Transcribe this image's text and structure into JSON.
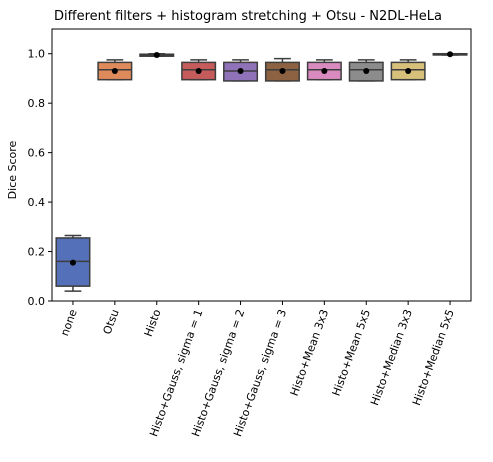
{
  "chart_data": {
    "type": "box",
    "title": "Different filters + histogram stretching + Otsu - N2DL-HeLa",
    "xlabel": "",
    "ylabel": "Dice Score",
    "ylim": [
      0.0,
      1.1
    ],
    "yticks": [
      0.0,
      0.2,
      0.4,
      0.6,
      0.8,
      1.0
    ],
    "grid": false,
    "boxes": [
      {
        "label": "none",
        "color": "#5470b8",
        "whisker_low": 0.04,
        "q1": 0.06,
        "median": 0.16,
        "q3": 0.255,
        "whisker_high": 0.265,
        "mean": 0.155
      },
      {
        "label": "Otsu",
        "color": "#df8a5a",
        "whisker_low": 0.895,
        "q1": 0.895,
        "median": 0.935,
        "q3": 0.965,
        "whisker_high": 0.975,
        "mean": 0.93
      },
      {
        "label": "Histo",
        "color": "#5b9e60",
        "whisker_low": 0.99,
        "q1": 0.99,
        "median": 0.995,
        "q3": 0.998,
        "whisker_high": 1.0,
        "mean": 0.995
      },
      {
        "label": "Histo+Gauss, sigma = 1",
        "color": "#c65b5c",
        "whisker_low": 0.895,
        "q1": 0.895,
        "median": 0.935,
        "q3": 0.965,
        "whisker_high": 0.975,
        "mean": 0.93
      },
      {
        "label": "Histo+Gauss, sigma = 2",
        "color": "#8f72b8",
        "whisker_low": 0.89,
        "q1": 0.89,
        "median": 0.93,
        "q3": 0.965,
        "whisker_high": 0.975,
        "mean": 0.93
      },
      {
        "label": "Histo+Gauss, sigma = 3",
        "color": "#8c6242",
        "whisker_low": 0.89,
        "q1": 0.89,
        "median": 0.935,
        "q3": 0.965,
        "whisker_high": 0.98,
        "mean": 0.93
      },
      {
        "label": "Histo+Mean 3x3",
        "color": "#d98bc0",
        "whisker_low": 0.895,
        "q1": 0.895,
        "median": 0.935,
        "q3": 0.965,
        "whisker_high": 0.975,
        "mean": 0.93
      },
      {
        "label": "Histo+Mean 5x5",
        "color": "#8c8c8c",
        "whisker_low": 0.89,
        "q1": 0.89,
        "median": 0.935,
        "q3": 0.965,
        "whisker_high": 0.975,
        "mean": 0.93
      },
      {
        "label": "Histo+Median 3x3",
        "color": "#d6c07a",
        "whisker_low": 0.895,
        "q1": 0.895,
        "median": 0.935,
        "q3": 0.965,
        "whisker_high": 0.975,
        "mean": 0.93
      },
      {
        "label": "Histo+Median 5x5",
        "color": "#6fb0d8",
        "whisker_low": 0.995,
        "q1": 0.995,
        "median": 0.998,
        "q3": 1.0,
        "whisker_high": 1.0,
        "mean": 0.998
      }
    ]
  }
}
